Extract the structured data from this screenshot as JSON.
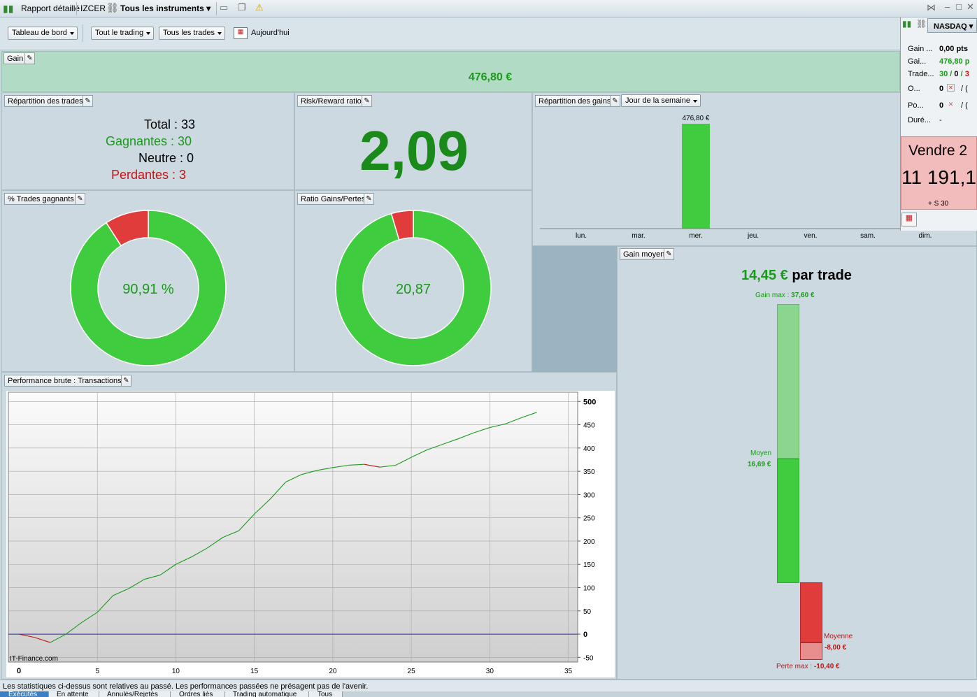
{
  "titlebar": {
    "report_label": "Rapport détaillé",
    "account": "IZCER",
    "instruments": "Tous les instruments"
  },
  "toolbar": {
    "dashboard": "Tableau de bord",
    "trading": "Tout le trading",
    "trades": "Tous les trades",
    "period": "Aujourd'hui"
  },
  "gain_panel": {
    "title": "Gain",
    "value": "476,80 €"
  },
  "repartition": {
    "title": "Répartition des trades",
    "total": "Total : 33",
    "winners": "Gagnantes : 30",
    "neutral": "Neutre : 0",
    "losers": "Perdantes : 3"
  },
  "risk_reward": {
    "title": "Risk/Reward ratio",
    "value": "2,09"
  },
  "gain_distribution": {
    "title": "Répartition des gains",
    "selector": "Jour de la semaine",
    "bar_label": "476,80 €",
    "days": [
      "lun.",
      "mar.",
      "mer.",
      "jeu.",
      "ven.",
      "sam.",
      "dim."
    ],
    "values": [
      0,
      0,
      476.8,
      0,
      0,
      0,
      0
    ]
  },
  "pct_winning": {
    "title": "% Trades gagnants",
    "value": "90,91 %",
    "fraction": 0.9091
  },
  "ratio_gain_loss": {
    "title": "Ratio Gains/Pertes",
    "value": "20,87",
    "fraction": 0.9543
  },
  "average_gain": {
    "title": "Gain moyen",
    "headline_value": "14,45 €",
    "headline_suffix": "par trade",
    "max_gain_label": "Gain max :",
    "max_gain_value": "37,60 €",
    "avg_label": "Moyen",
    "avg_value": "16,69 €",
    "avg_loss_label": "Moyenne",
    "avg_loss_value": "-8,00 €",
    "max_loss_label": "Perte max :",
    "max_loss_value": "-10,40 €",
    "data": {
      "gain_max": 37.6,
      "gain_avg": 16.69,
      "loss_avg": -8.0,
      "loss_max": -10.4
    }
  },
  "performance": {
    "title": "Performance brute : Transactions",
    "watermark": "IT-Finance.com"
  },
  "chart_data": {
    "type": "line",
    "title": "Performance brute : Transactions",
    "xlim": [
      0,
      36
    ],
    "ylim": [
      -60,
      520
    ],
    "x_ticks": [
      0,
      5,
      10,
      15,
      20,
      25,
      30,
      35
    ],
    "y_ticks": [
      -50,
      0,
      50,
      100,
      150,
      200,
      250,
      300,
      350,
      400,
      450,
      500
    ],
    "x": [
      0,
      1,
      2,
      3,
      4,
      5,
      6,
      7,
      8,
      9,
      10,
      11,
      12,
      13,
      14,
      15,
      16,
      17,
      18,
      19,
      20,
      21,
      22,
      23,
      24,
      25,
      26,
      27,
      28,
      29,
      30,
      31,
      32,
      33
    ],
    "y": [
      0,
      -7,
      -18,
      0,
      25,
      47,
      83,
      98,
      118,
      127,
      150,
      166,
      185,
      208,
      222,
      258,
      290,
      327,
      343,
      352,
      358,
      363,
      365,
      359,
      363,
      380,
      396,
      408,
      420,
      433,
      444,
      452,
      465,
      476.8
    ],
    "colors": {
      "up": "#1a9a1a",
      "down": "#c01515",
      "zero_line": "#2b2bb5"
    }
  },
  "sidebar": {
    "market": "NASDAQ",
    "rows": [
      {
        "label": "Gain ...",
        "value": "0,00 pts"
      },
      {
        "label": "Gai...",
        "value": "476,80 p"
      },
      {
        "label": "Trade...",
        "value": "30 / 0 / 3"
      },
      {
        "label": "O...",
        "value": "0"
      },
      {
        "label": "Po...",
        "value": "0"
      },
      {
        "label": "Duré...",
        "value": "-"
      }
    ],
    "slash_1": "/ (",
    "slash_2": "/ (",
    "sell_label": "Vendre 2",
    "sell_price": "11 191,1",
    "sell_sub": "+ S 30"
  },
  "status": {
    "disclaimer": "Les statistiques ci-dessus sont relatives au passé. Les performances passées ne présagent pas de l'avenir."
  },
  "bottom_tabs": [
    "Exécutés",
    "En attente",
    "Annulés/Rejetés",
    "Ordres liés",
    "Trading automatique",
    "Tous"
  ],
  "colors": {
    "green": "#3fcd3f",
    "red": "#e03c3c",
    "text_green": "#1a9a1a",
    "text_red": "#c01515",
    "gain_bg": "#b1dbc4"
  }
}
